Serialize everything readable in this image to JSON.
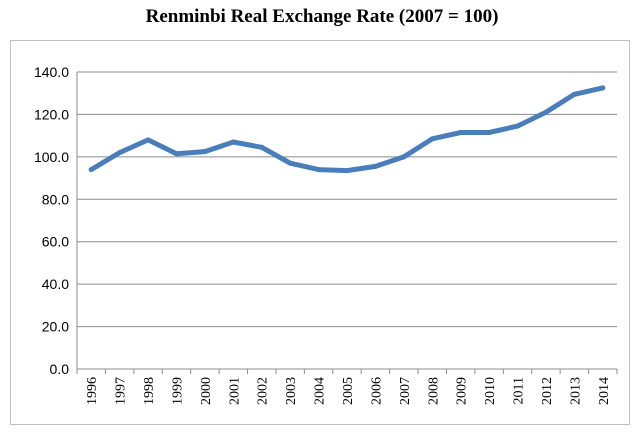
{
  "chart_data": {
    "type": "line",
    "title": "Renminbi Real Exchange Rate (2007 = 100)",
    "xlabel": "",
    "ylabel": "",
    "ylim": [
      0,
      140
    ],
    "y_ticks": [
      "0.0",
      "20.0",
      "40.0",
      "60.0",
      "80.0",
      "100.0",
      "120.0",
      "140.0"
    ],
    "grid": true,
    "legend": "none",
    "categories": [
      "1996",
      "1997",
      "1998",
      "1999",
      "2000",
      "2001",
      "2002",
      "2003",
      "2004",
      "2005",
      "2006",
      "2007",
      "2008",
      "2009",
      "2010",
      "2011",
      "2012",
      "2013",
      "2014"
    ],
    "series": [
      {
        "color": "#4a7ebb",
        "values": [
          94,
          102,
          108,
          101.5,
          102.5,
          107,
          104.5,
          97,
          94,
          93.5,
          95.5,
          100,
          108.5,
          111.5,
          111.5,
          114.5,
          121,
          129.5,
          132.5
        ]
      }
    ]
  }
}
